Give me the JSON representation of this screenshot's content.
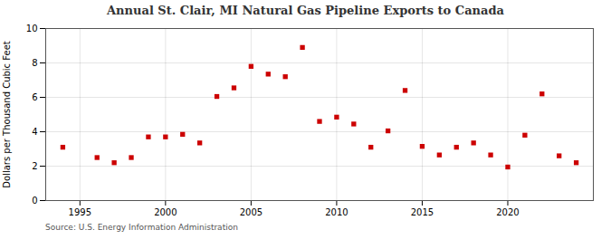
{
  "chart_data": {
    "type": "scatter",
    "title": "Annual St. Clair, MI Natural Gas Pipeline Exports to Canada",
    "ylabel": "Dollars per Thousand Cubic Feet",
    "source": "Source: U.S. Energy Information Administration",
    "x": [
      1994,
      1996,
      1997,
      1998,
      1999,
      2000,
      2001,
      2002,
      2003,
      2004,
      2005,
      2006,
      2007,
      2008,
      2009,
      2010,
      2011,
      2012,
      2013,
      2014,
      2015,
      2016,
      2017,
      2018,
      2019,
      2020,
      2021,
      2022,
      2023,
      2024
    ],
    "values": [
      3.1,
      2.5,
      2.2,
      2.5,
      3.7,
      3.7,
      3.85,
      3.35,
      6.05,
      6.55,
      7.8,
      7.35,
      7.2,
      8.9,
      4.6,
      4.85,
      4.45,
      3.1,
      4.05,
      6.4,
      3.15,
      2.65,
      3.1,
      3.35,
      2.65,
      1.95,
      3.8,
      6.2,
      2.6,
      2.2
    ],
    "color": "#cc0000",
    "marker": "square",
    "xlim": [
      1993,
      2025
    ],
    "xticks": [
      1995,
      2000,
      2005,
      2010,
      2015,
      2020
    ],
    "ylim": [
      0,
      10
    ],
    "yticks": [
      0,
      2,
      4,
      6,
      8,
      10
    ],
    "grid": true
  }
}
